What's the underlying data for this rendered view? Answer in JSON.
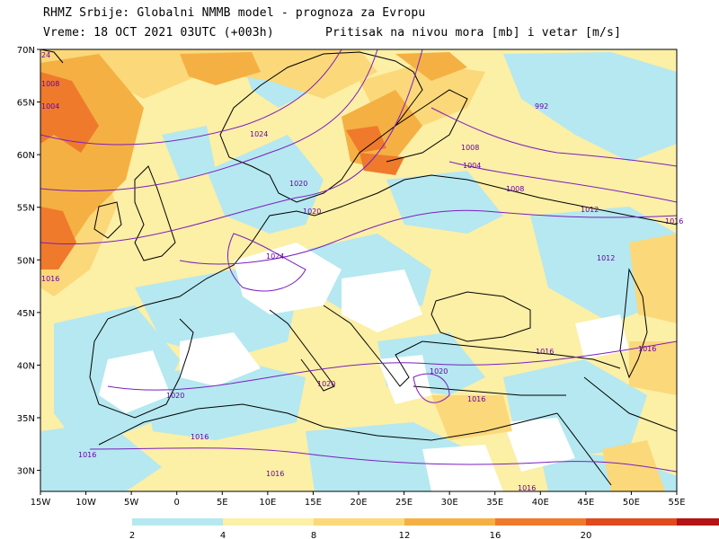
{
  "header": {
    "line1": "RHMZ Srbije: Globalni NMMB model - prognoza za Evropu",
    "line2": "Vreme: 18 OCT 2021 03UTC (+003h)",
    "line3": "Pritisak na nivou mora [mb] i vetar [m/s]"
  },
  "map": {
    "lon_range": [
      -15,
      55
    ],
    "lat_range": [
      28,
      70
    ],
    "lon_ticks": [
      "15W",
      "10W",
      "5W",
      "0",
      "5E",
      "10E",
      "15E",
      "20E",
      "25E",
      "30E",
      "35E",
      "40E",
      "45E",
      "50E",
      "55E"
    ],
    "lat_ticks": [
      "70N",
      "65N",
      "60N",
      "55N",
      "50N",
      "45N",
      "40N",
      "35N",
      "30N"
    ],
    "isobar_labels": [
      "1024",
      "1020",
      "1020",
      "1024",
      "1008",
      "1004",
      "1008",
      "1012",
      "1012",
      "1016",
      "1016",
      "1020",
      "1016",
      "1020",
      "1020",
      "1016",
      "1016",
      "1016",
      "1016",
      "1016",
      "992",
      "1016",
      "1004",
      "1008",
      "24"
    ]
  },
  "legend": {
    "ticks": [
      "2",
      "4",
      "8",
      "12",
      "16",
      "20"
    ],
    "colors": [
      "#b5e8f0",
      "#fcefa6",
      "#fbd87a",
      "#f5b043",
      "#ef7a2c",
      "#e04a1e",
      "#b41414"
    ]
  }
}
